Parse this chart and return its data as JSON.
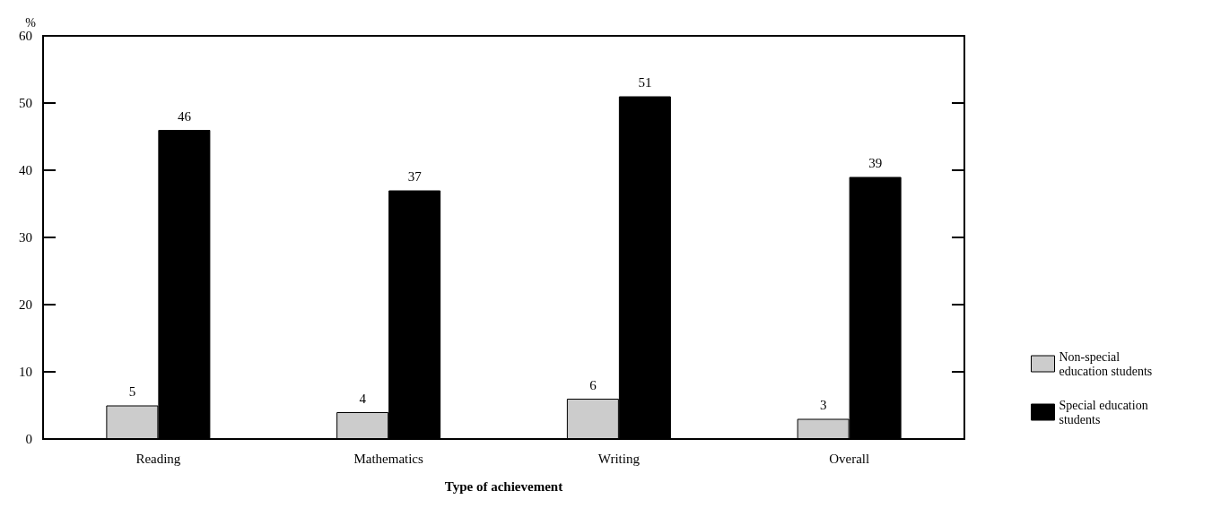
{
  "chart_data": {
    "type": "bar",
    "xlabel": "Type of achievement",
    "ylabel": "%",
    "categories": [
      "Reading",
      "Mathematics",
      "Writing",
      "Overall"
    ],
    "series": [
      {
        "name": "Non-special education students",
        "color": "#cccccc",
        "values": [
          5,
          4,
          6,
          3
        ]
      },
      {
        "name": "Special education students",
        "color": "#000000",
        "values": [
          46,
          37,
          51,
          39
        ]
      }
    ],
    "ylim": [
      0,
      60
    ],
    "yticks": [
      0,
      10,
      20,
      30,
      40,
      50,
      60
    ],
    "data_labels": true,
    "grid": false,
    "legend": "right"
  }
}
